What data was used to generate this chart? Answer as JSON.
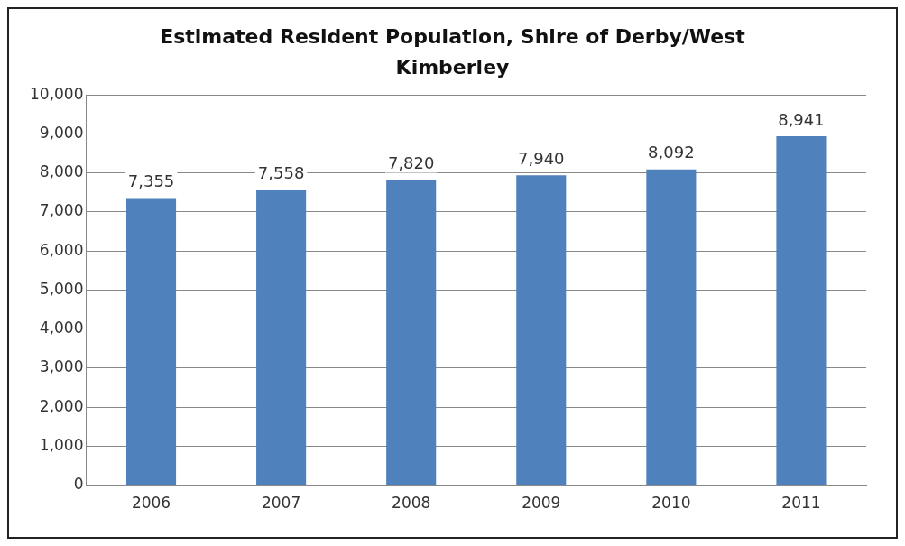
{
  "chart_data": {
    "type": "bar",
    "title": "Estimated Resident Population, Shire of Derby/West Kimberley",
    "categories": [
      "2006",
      "2007",
      "2008",
      "2009",
      "2010",
      "2011"
    ],
    "values": [
      7355,
      7558,
      7820,
      7940,
      8092,
      8941
    ],
    "value_labels": [
      "7,355",
      "7,558",
      "7,820",
      "7,940",
      "8,092",
      "8,941"
    ],
    "color": "#4f81bd",
    "ylim": [
      0,
      10000
    ],
    "yticks": [
      0,
      {
        "value": 1000,
        "label": "1,000"
      },
      {
        "value": 2000,
        "label": "2,000"
      },
      {
        "value": 3000,
        "label": "3,000"
      },
      {
        "value": 4000,
        "label": "4,000"
      },
      {
        "value": 5000,
        "label": "5,000"
      },
      {
        "value": 6000,
        "label": "6,000"
      },
      {
        "value": 7000,
        "label": "7,000"
      },
      {
        "value": 8000,
        "label": "8,000"
      },
      {
        "value": 9000,
        "label": "9,000"
      },
      {
        "value": 10000,
        "label": "10,000"
      }
    ],
    "grid": "y"
  }
}
